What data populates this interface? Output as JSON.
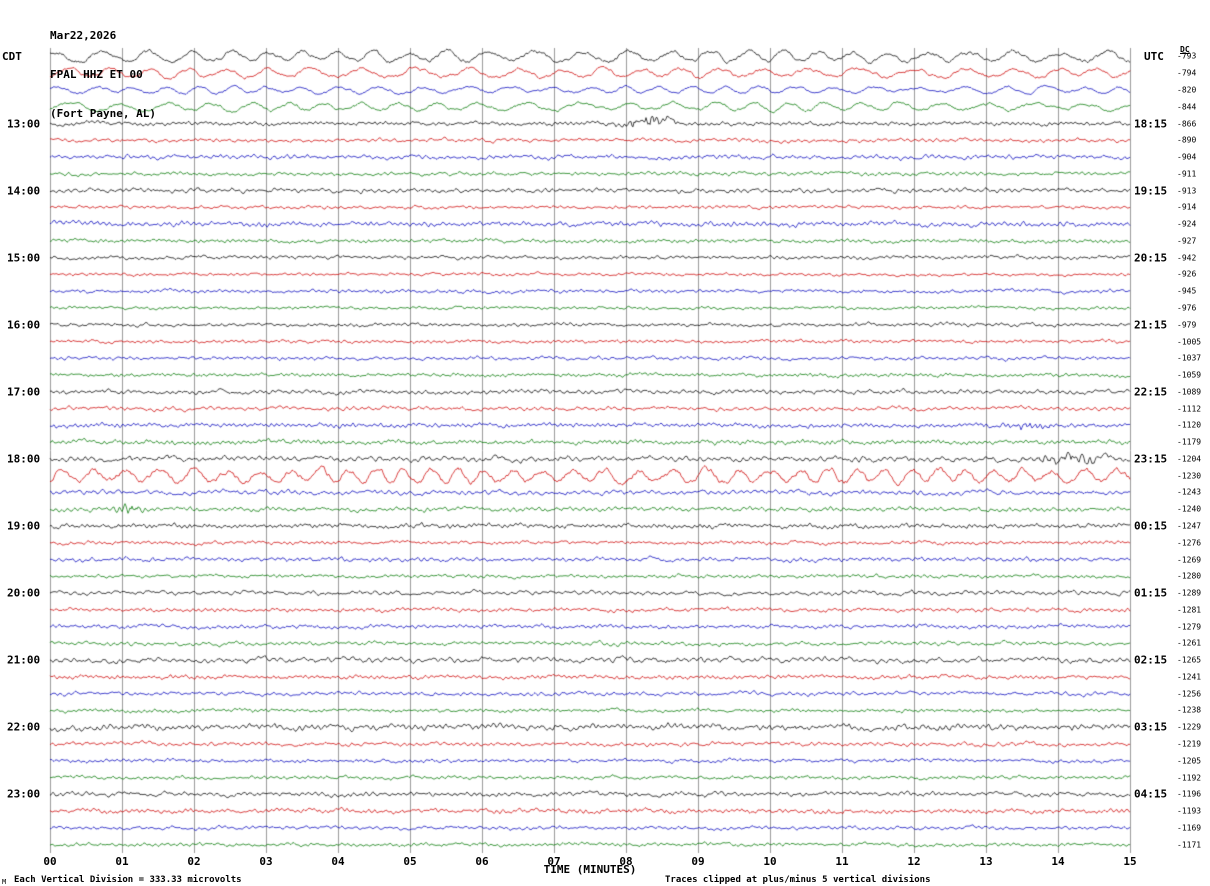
{
  "header": {
    "date": "Mar22,2026",
    "station_line": "FPAL HHZ ET 00",
    "location_line": "(Fort Payne, AL)",
    "left_tz": "CDT",
    "right_tz": "UTC",
    "dc_header": "DC"
  },
  "x_axis": {
    "label": "TIME (MINUTES)",
    "ticks": [
      "00",
      "01",
      "02",
      "03",
      "04",
      "05",
      "06",
      "07",
      "08",
      "09",
      "10",
      "11",
      "12",
      "13",
      "14",
      "15"
    ]
  },
  "footer": {
    "scale_note": "Each Vertical Division =  333.33 microvolts",
    "clip_note": "Traces clipped at plus/minus 5 vertical divisions",
    "corner_mark": "M"
  },
  "chart_data": {
    "type": "line",
    "subtype": "helicorder-seismogram",
    "title": "FPAL HHZ ET 00 (Fort Payne, AL) Mar22,2026",
    "xlabel": "TIME (MINUTES)",
    "x_range": [
      0,
      15
    ],
    "minutes_per_line": 15,
    "grid": {
      "on": true,
      "x_interval_minutes": 1,
      "color": "#9a9a9a"
    },
    "colors": {
      "black": "#000000",
      "red": "#cc0000",
      "blue": "#0000bb",
      "green": "#007700"
    },
    "rows": [
      {
        "left": "",
        "right": "",
        "dc": -793,
        "color": "black",
        "amp": 4.5,
        "period": 40
      },
      {
        "left": "",
        "right": "",
        "dc": -794,
        "color": "red",
        "amp": 4.0,
        "period": 45
      },
      {
        "left": "",
        "right": "",
        "dc": -820,
        "color": "blue",
        "amp": 3.0,
        "period": 38
      },
      {
        "left": "",
        "right": "",
        "dc": -844,
        "color": "green",
        "amp": 3.5,
        "period": 42
      },
      {
        "left": "13:00",
        "right": "18:15",
        "dc": -866,
        "color": "black",
        "amp": 1.6,
        "burst": {
          "m": 8.3,
          "amp": 5,
          "dur": 0.5
        }
      },
      {
        "left": "",
        "right": "",
        "dc": -890,
        "color": "red",
        "amp": 1.6
      },
      {
        "left": "",
        "right": "",
        "dc": -904,
        "color": "blue",
        "amp": 1.8
      },
      {
        "left": "",
        "right": "",
        "dc": -911,
        "color": "green",
        "amp": 1.5
      },
      {
        "left": "14:00",
        "right": "19:15",
        "dc": -913,
        "color": "black",
        "amp": 1.8
      },
      {
        "left": "",
        "right": "",
        "dc": -914,
        "color": "red",
        "amp": 1.3
      },
      {
        "left": "",
        "right": "",
        "dc": -924,
        "color": "blue",
        "amp": 2.0
      },
      {
        "left": "",
        "right": "",
        "dc": -927,
        "color": "green",
        "amp": 1.5
      },
      {
        "left": "15:00",
        "right": "20:15",
        "dc": -942,
        "color": "black",
        "amp": 1.4
      },
      {
        "left": "",
        "right": "",
        "dc": -926,
        "color": "red",
        "amp": 1.2
      },
      {
        "left": "",
        "right": "",
        "dc": -945,
        "color": "blue",
        "amp": 1.4
      },
      {
        "left": "",
        "right": "",
        "dc": -976,
        "color": "green",
        "amp": 1.2
      },
      {
        "left": "16:00",
        "right": "21:15",
        "dc": -979,
        "color": "black",
        "amp": 1.4
      },
      {
        "left": "",
        "right": "",
        "dc": -1005,
        "color": "red",
        "amp": 1.4
      },
      {
        "left": "",
        "right": "",
        "dc": -1037,
        "color": "blue",
        "amp": 1.4
      },
      {
        "left": "",
        "right": "",
        "dc": -1059,
        "color": "green",
        "amp": 1.4
      },
      {
        "left": "17:00",
        "right": "22:15",
        "dc": -1089,
        "color": "black",
        "amp": 1.8
      },
      {
        "left": "",
        "right": "",
        "dc": -1112,
        "color": "red",
        "amp": 1.6
      },
      {
        "left": "",
        "right": "",
        "dc": -1120,
        "color": "blue",
        "amp": 1.8,
        "burst": {
          "m": 13.6,
          "amp": 3,
          "dur": 0.4
        }
      },
      {
        "left": "",
        "right": "",
        "dc": -1179,
        "color": "green",
        "amp": 1.8
      },
      {
        "left": "18:00",
        "right": "23:15",
        "dc": -1204,
        "color": "black",
        "amp": 2.2,
        "burst": {
          "m": 14.2,
          "amp": 3,
          "dur": 0.8
        }
      },
      {
        "left": "",
        "right": "",
        "dc": -1230,
        "color": "red",
        "amp": 6.0,
        "period": 30
      },
      {
        "left": "",
        "right": "",
        "dc": -1243,
        "color": "blue",
        "amp": 2.0
      },
      {
        "left": "",
        "right": "",
        "dc": -1240,
        "color": "green",
        "amp": 1.8,
        "burst": {
          "m": 1.1,
          "amp": 4,
          "dur": 0.3
        }
      },
      {
        "left": "19:00",
        "right": "00:15",
        "dc": -1247,
        "color": "black",
        "amp": 1.8
      },
      {
        "left": "",
        "right": "",
        "dc": -1276,
        "color": "red",
        "amp": 1.4
      },
      {
        "left": "",
        "right": "",
        "dc": -1269,
        "color": "blue",
        "amp": 1.8
      },
      {
        "left": "",
        "right": "",
        "dc": -1280,
        "color": "green",
        "amp": 1.4
      },
      {
        "left": "20:00",
        "right": "01:15",
        "dc": -1289,
        "color": "black",
        "amp": 1.8
      },
      {
        "left": "",
        "right": "",
        "dc": -1281,
        "color": "red",
        "amp": 1.6
      },
      {
        "left": "",
        "right": "",
        "dc": -1279,
        "color": "blue",
        "amp": 1.6
      },
      {
        "left": "",
        "right": "",
        "dc": -1261,
        "color": "green",
        "amp": 1.6
      },
      {
        "left": "21:00",
        "right": "02:15",
        "dc": -1265,
        "color": "black",
        "amp": 2.2
      },
      {
        "left": "",
        "right": "",
        "dc": -1241,
        "color": "red",
        "amp": 1.6
      },
      {
        "left": "",
        "right": "",
        "dc": -1256,
        "color": "blue",
        "amp": 1.6
      },
      {
        "left": "",
        "right": "",
        "dc": -1238,
        "color": "green",
        "amp": 1.4
      },
      {
        "left": "22:00",
        "right": "03:15",
        "dc": -1229,
        "color": "black",
        "amp": 2.4
      },
      {
        "left": "",
        "right": "",
        "dc": -1219,
        "color": "red",
        "amp": 1.6
      },
      {
        "left": "",
        "right": "",
        "dc": -1205,
        "color": "blue",
        "amp": 1.4
      },
      {
        "left": "",
        "right": "",
        "dc": -1192,
        "color": "green",
        "amp": 1.4
      },
      {
        "left": "23:00",
        "right": "04:15",
        "dc": -1196,
        "color": "black",
        "amp": 1.8
      },
      {
        "left": "",
        "right": "",
        "dc": -1193,
        "color": "red",
        "amp": 1.8
      },
      {
        "left": "",
        "right": "",
        "dc": -1169,
        "color": "blue",
        "amp": 1.4
      },
      {
        "left": "",
        "right": "",
        "dc": -1171,
        "color": "green",
        "amp": 1.4
      }
    ]
  }
}
